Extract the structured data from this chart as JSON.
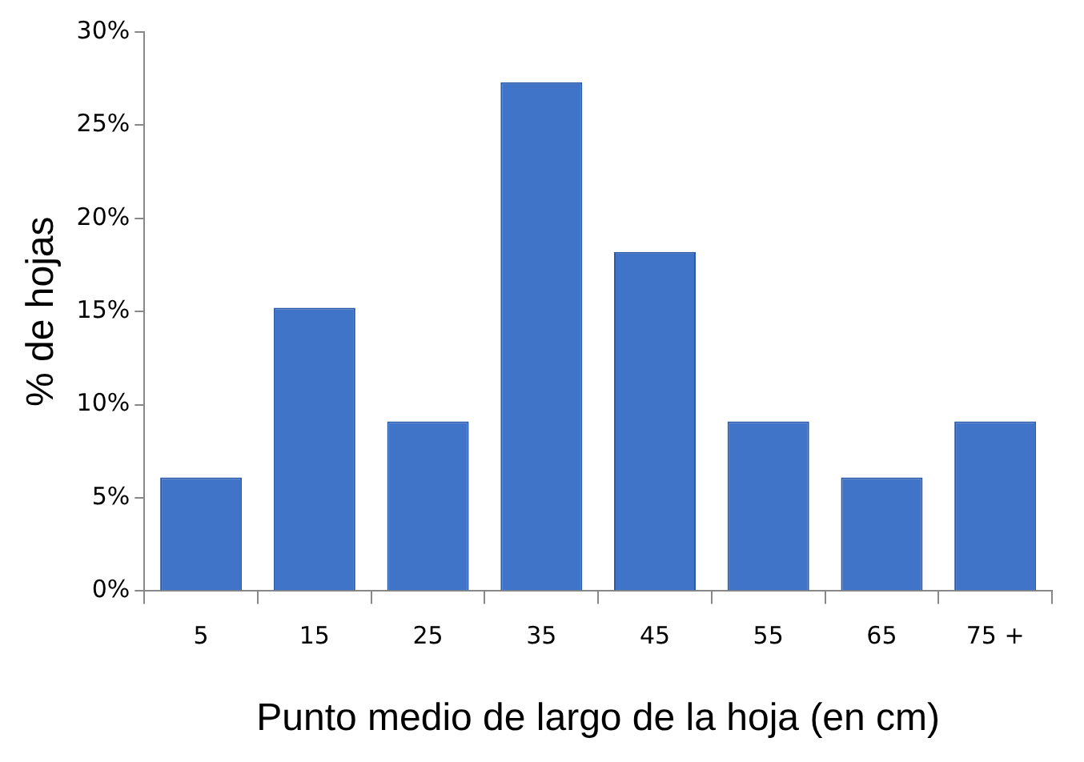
{
  "chart_data": {
    "type": "bar",
    "xlabel": "Punto medio de largo de la hoja (en cm)",
    "ylabel": "% de hojas",
    "categories": [
      "5",
      "15",
      "25",
      "35",
      "45",
      "55",
      "65",
      "75 +"
    ],
    "values": [
      6.1,
      15.2,
      9.1,
      27.3,
      18.2,
      9.1,
      6.1,
      9.1
    ],
    "color": "#3f74c8",
    "ylim": [
      0,
      30
    ],
    "yticks": [
      {
        "value": 0,
        "label": "0%"
      },
      {
        "value": 5,
        "label": "5%"
      },
      {
        "value": 10,
        "label": "10%"
      },
      {
        "value": 15,
        "label": "15%"
      },
      {
        "value": 20,
        "label": "20%"
      },
      {
        "value": 25,
        "label": "25%"
      },
      {
        "value": 30,
        "label": "30%"
      }
    ],
    "grid": false,
    "legend": false
  }
}
